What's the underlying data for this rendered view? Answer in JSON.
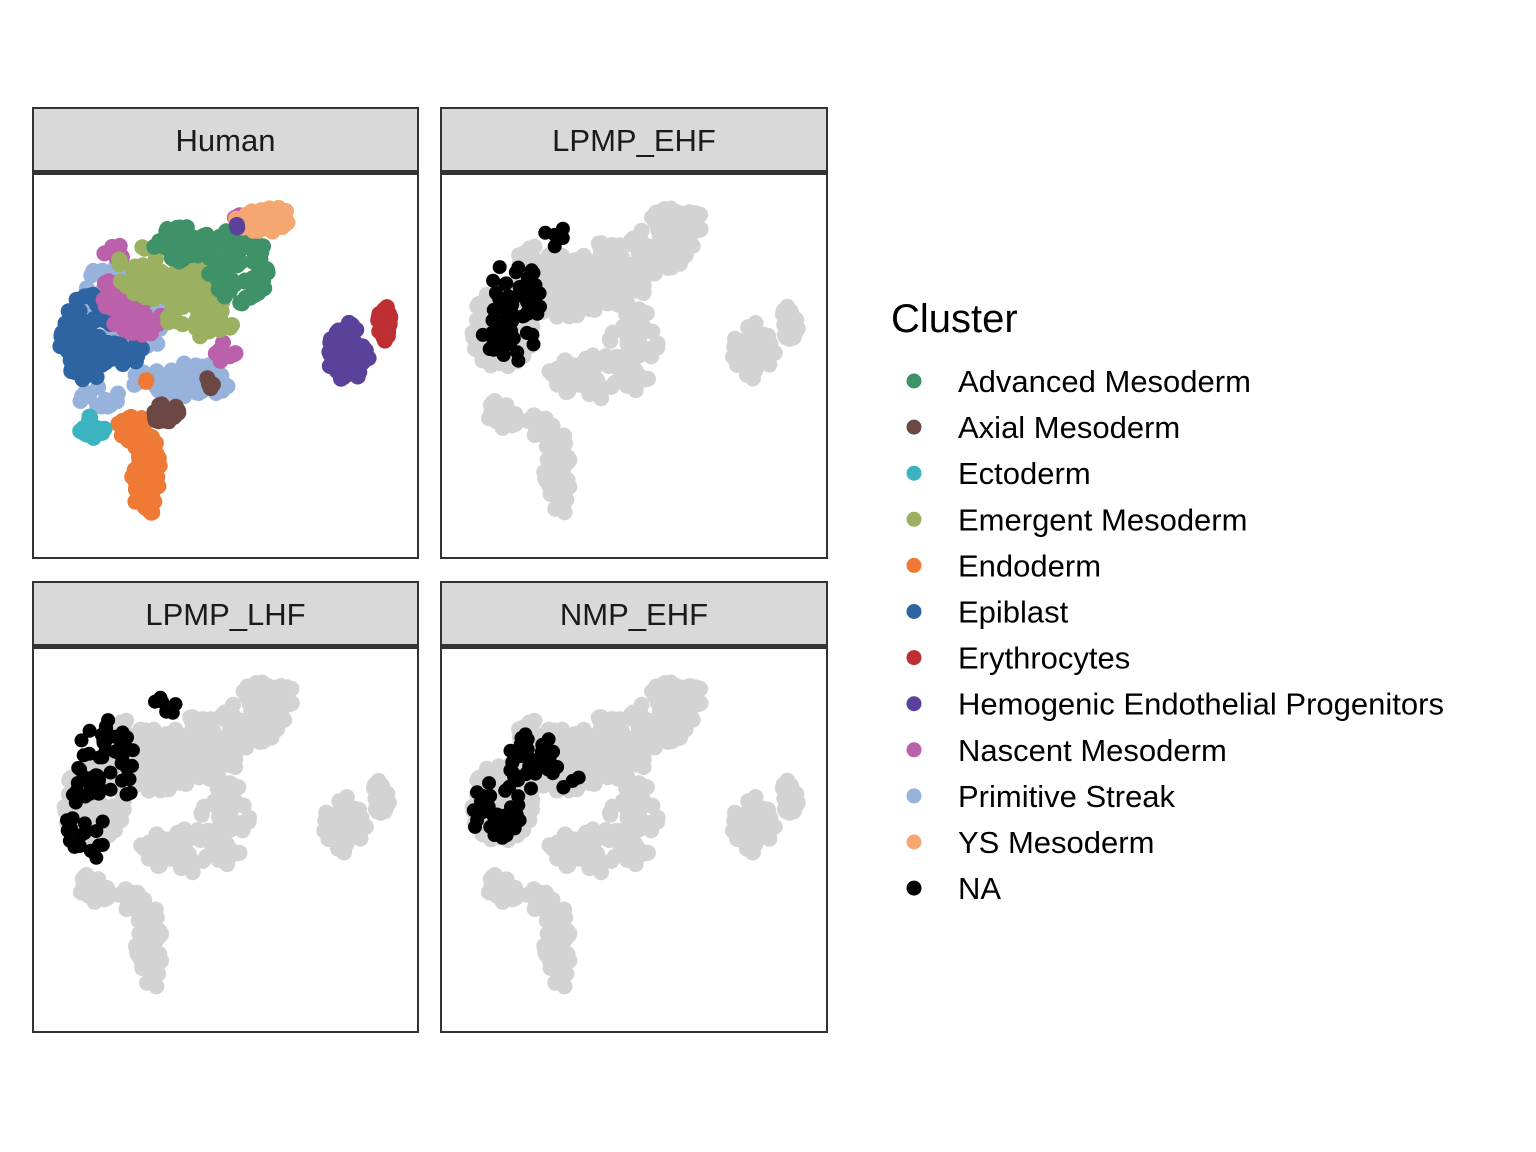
{
  "chart_data": {
    "type": "scatter",
    "title": "",
    "xlabel": "",
    "ylabel": "",
    "xlim": [
      0,
      100
    ],
    "ylim": [
      0,
      100
    ],
    "grid": false,
    "axes_visible": false,
    "legend_position": "right",
    "legend": {
      "title": "Cluster",
      "entries": [
        {
          "name": "Advanced Mesoderm",
          "color": "#3f9168"
        },
        {
          "name": "Axial Mesoderm",
          "color": "#6b4844"
        },
        {
          "name": "Ectoderm",
          "color": "#3bb3c0"
        },
        {
          "name": "Emergent Mesoderm",
          "color": "#9bb060"
        },
        {
          "name": "Endoderm",
          "color": "#ee7a36"
        },
        {
          "name": "Epiblast",
          "color": "#2f64a2"
        },
        {
          "name": "Erythrocytes",
          "color": "#bd2f33"
        },
        {
          "name": "Hemogenic Endothelial Progenitors",
          "color": "#5a4199"
        },
        {
          "name": "Nascent Mesoderm",
          "color": "#bb60aa"
        },
        {
          "name": "Primitive Streak",
          "color": "#97b3dc"
        },
        {
          "name": "YS Mesoderm",
          "color": "#f5a772"
        },
        {
          "name": "NA",
          "color": "#000000"
        }
      ]
    },
    "background_color": "#d3d3d3",
    "facets": [
      {
        "title": "Human",
        "mode": "clusters"
      },
      {
        "title": "LPMP_EHF",
        "mode": "highlight",
        "highlight_regions": [
          {
            "cx": 17,
            "cy": 70,
            "rx": 8,
            "ry": 9,
            "n": 46
          },
          {
            "cx": 15,
            "cy": 57,
            "rx": 8,
            "ry": 7,
            "n": 26
          },
          {
            "cx": 28,
            "cy": 86,
            "rx": 6,
            "ry": 3,
            "n": 5
          }
        ]
      },
      {
        "title": "LPMP_LHF",
        "mode": "highlight",
        "highlight_regions": [
          {
            "cx": 18,
            "cy": 72,
            "rx": 9,
            "ry": 12,
            "n": 50
          },
          {
            "cx": 12,
            "cy": 55,
            "rx": 6,
            "ry": 13,
            "n": 26
          },
          {
            "cx": 33,
            "cy": 87,
            "rx": 4,
            "ry": 3,
            "n": 6
          }
        ]
      },
      {
        "title": "NMP_EHF",
        "mode": "highlight",
        "highlight_regions": [
          {
            "cx": 22,
            "cy": 72,
            "rx": 7,
            "ry": 8,
            "n": 40
          },
          {
            "cx": 12,
            "cy": 58,
            "rx": 7,
            "ry": 9,
            "n": 38
          },
          {
            "cx": 33,
            "cy": 66,
            "rx": 4,
            "ry": 3,
            "n": 4
          }
        ]
      }
    ],
    "cluster_regions": [
      {
        "cluster": "Primitive Streak",
        "regions": [
          {
            "cx": 25,
            "cy": 68,
            "rx": 14,
            "ry": 14,
            "n": 45
          },
          {
            "cx": 38,
            "cy": 46,
            "rx": 14,
            "ry": 5,
            "n": 55
          },
          {
            "cx": 15,
            "cy": 42,
            "rx": 6,
            "ry": 4,
            "n": 12
          },
          {
            "cx": 14,
            "cy": 72,
            "rx": 3,
            "ry": 5,
            "n": 6
          }
        ]
      },
      {
        "cluster": "Epiblast",
        "regions": [
          {
            "cx": 12,
            "cy": 58,
            "rx": 8,
            "ry": 12,
            "n": 90
          },
          {
            "cx": 22,
            "cy": 54,
            "rx": 5,
            "ry": 4,
            "n": 16
          }
        ]
      },
      {
        "cluster": "Nascent Mesoderm",
        "regions": [
          {
            "cx": 23,
            "cy": 70,
            "rx": 9,
            "ry": 5,
            "n": 50
          },
          {
            "cx": 26,
            "cy": 62,
            "rx": 7,
            "ry": 4,
            "n": 20
          },
          {
            "cx": 50,
            "cy": 54,
            "rx": 3,
            "ry": 3,
            "n": 10
          },
          {
            "cx": 20,
            "cy": 82,
            "rx": 4,
            "ry": 2,
            "n": 6
          },
          {
            "cx": 53,
            "cy": 91,
            "rx": 2,
            "ry": 2,
            "n": 4
          }
        ]
      },
      {
        "cluster": "Emergent Mesoderm",
        "regions": [
          {
            "cx": 33,
            "cy": 76,
            "rx": 14,
            "ry": 8,
            "n": 80
          },
          {
            "cx": 43,
            "cy": 64,
            "rx": 10,
            "ry": 6,
            "n": 45
          }
        ]
      },
      {
        "cluster": "Advanced Mesoderm",
        "regions": [
          {
            "cx": 38,
            "cy": 84,
            "rx": 8,
            "ry": 5,
            "n": 50
          },
          {
            "cx": 54,
            "cy": 78,
            "rx": 9,
            "ry": 11,
            "n": 60
          },
          {
            "cx": 57,
            "cy": 87,
            "rx": 5,
            "ry": 5,
            "n": 15
          }
        ]
      },
      {
        "cluster": "YS Mesoderm",
        "regions": [
          {
            "cx": 60,
            "cy": 91,
            "rx": 8,
            "ry": 4,
            "n": 40
          }
        ]
      },
      {
        "cluster": "Hemogenic Endothelial Progenitors",
        "regions": [
          {
            "cx": 84,
            "cy": 54,
            "rx": 6,
            "ry": 8,
            "n": 70
          },
          {
            "cx": 53,
            "cy": 89,
            "rx": 1,
            "ry": 1,
            "n": 2
          }
        ]
      },
      {
        "cluster": "Erythrocytes",
        "regions": [
          {
            "cx": 94,
            "cy": 62,
            "rx": 1.8,
            "ry": 5,
            "n": 35
          }
        ]
      },
      {
        "cluster": "Endoderm",
        "regions": [
          {
            "cx": 28,
            "cy": 20,
            "rx": 4,
            "ry": 12,
            "n": 70
          },
          {
            "cx": 24,
            "cy": 33,
            "rx": 4,
            "ry": 4,
            "n": 25
          },
          {
            "cx": 27,
            "cy": 46,
            "rx": 2,
            "ry": 1,
            "n": 2
          }
        ]
      },
      {
        "cluster": "Ectoderm",
        "regions": [
          {
            "cx": 13,
            "cy": 33,
            "rx": 4,
            "ry": 3,
            "n": 20
          }
        ]
      },
      {
        "cluster": "Axial Mesoderm",
        "regions": [
          {
            "cx": 33,
            "cy": 37,
            "rx": 4,
            "ry": 3,
            "n": 20
          },
          {
            "cx": 45,
            "cy": 45,
            "rx": 3,
            "ry": 2,
            "n": 6
          }
        ]
      }
    ],
    "background_regions": [
      {
        "cx": 14,
        "cy": 60,
        "rx": 9,
        "ry": 12,
        "n": 80
      },
      {
        "cx": 30,
        "cy": 72,
        "rx": 14,
        "ry": 9,
        "n": 110
      },
      {
        "cx": 45,
        "cy": 76,
        "rx": 12,
        "ry": 9,
        "n": 80
      },
      {
        "cx": 58,
        "cy": 84,
        "rx": 9,
        "ry": 7,
        "n": 55
      },
      {
        "cx": 62,
        "cy": 90,
        "rx": 8,
        "ry": 4,
        "n": 30
      },
      {
        "cx": 40,
        "cy": 47,
        "rx": 14,
        "ry": 6,
        "n": 60
      },
      {
        "cx": 50,
        "cy": 58,
        "rx": 7,
        "ry": 8,
        "n": 35
      },
      {
        "cx": 14,
        "cy": 37,
        "rx": 5,
        "ry": 5,
        "n": 20
      },
      {
        "cx": 24,
        "cy": 33,
        "rx": 4,
        "ry": 4,
        "n": 20
      },
      {
        "cx": 29,
        "cy": 20,
        "rx": 4,
        "ry": 12,
        "n": 60
      },
      {
        "cx": 83,
        "cy": 54,
        "rx": 6,
        "ry": 8,
        "n": 50
      },
      {
        "cx": 93,
        "cy": 62,
        "rx": 2.5,
        "ry": 5,
        "n": 20
      },
      {
        "cx": 22,
        "cy": 80,
        "rx": 5,
        "ry": 4,
        "n": 15
      }
    ]
  }
}
